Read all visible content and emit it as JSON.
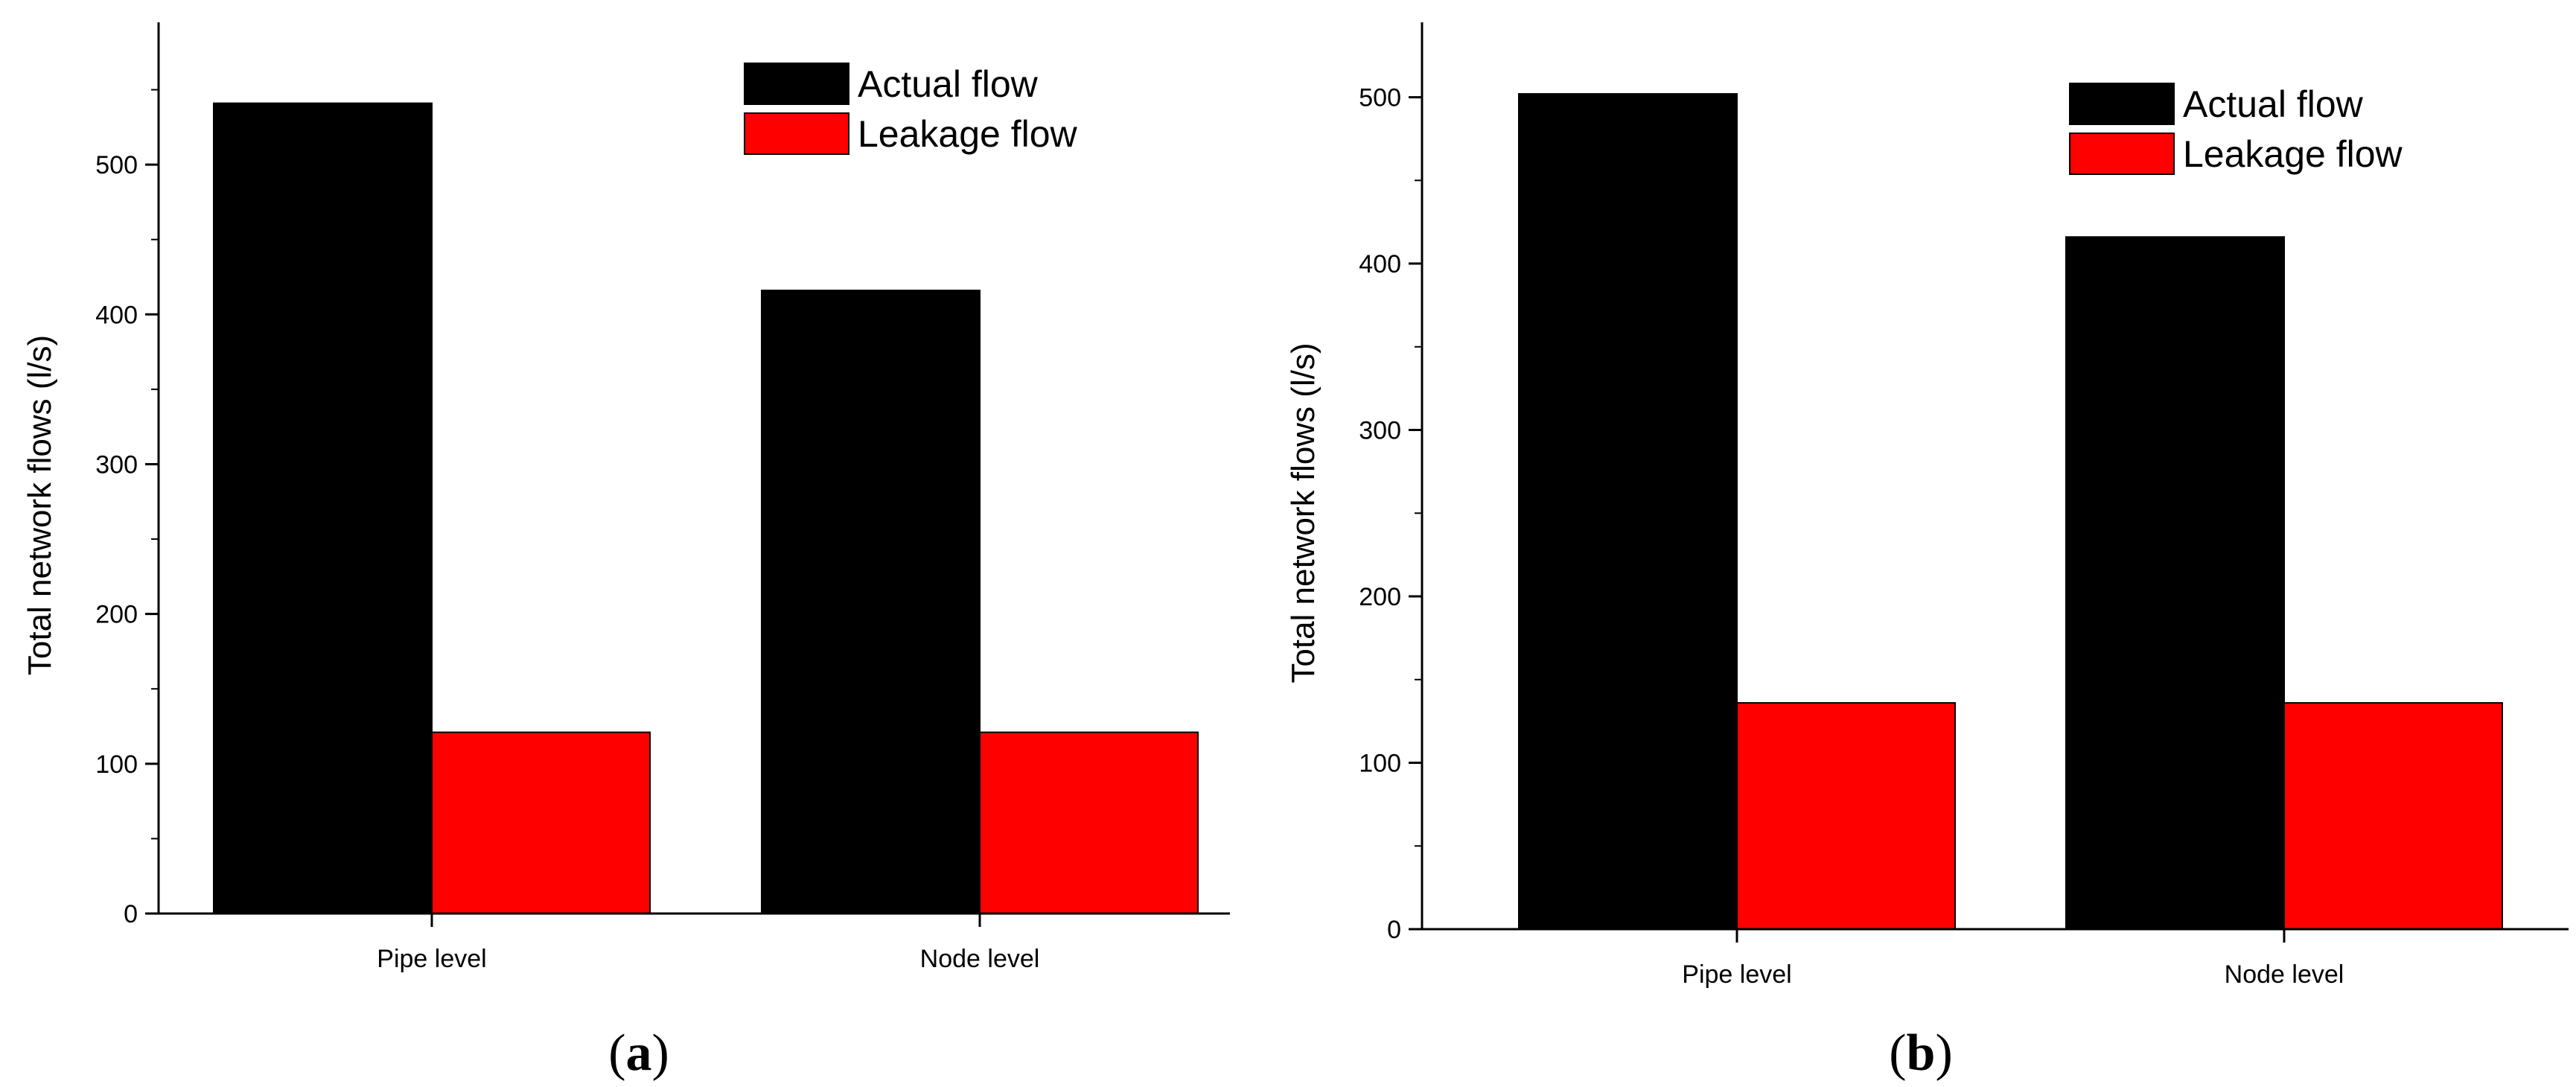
{
  "chart_data": [
    {
      "type": "bar",
      "caption_open": "(",
      "caption_letter": "a",
      "caption_close": ")",
      "categories": [
        "Pipe level",
        "Node level"
      ],
      "series": [
        {
          "name": "Actual flow",
          "values": [
            541,
            416
          ],
          "color": "#000000"
        },
        {
          "name": "Leakage flow",
          "values": [
            121,
            121
          ],
          "color": "#ff0000"
        }
      ],
      "ylabel": "Total network flows (l/s)",
      "ylim": [
        0,
        595
      ],
      "yticks": [
        0,
        100,
        200,
        300,
        400,
        500
      ],
      "legend_position": "top-right",
      "grid": false
    },
    {
      "type": "bar",
      "caption_open": "(",
      "caption_letter": "b",
      "caption_close": ")",
      "categories": [
        "Pipe level",
        "Node level"
      ],
      "series": [
        {
          "name": "Actual flow",
          "values": [
            502,
            416
          ],
          "color": "#000000"
        },
        {
          "name": "Leakage flow",
          "values": [
            136,
            136
          ],
          "color": "#ff0000"
        }
      ],
      "ylabel": "Total network flows (l/s)",
      "ylim": [
        0,
        545
      ],
      "yticks": [
        0,
        100,
        200,
        300,
        400,
        500
      ],
      "legend_position": "top-right",
      "grid": false
    }
  ]
}
